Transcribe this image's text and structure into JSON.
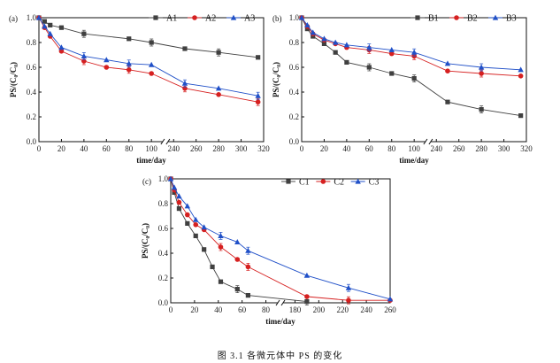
{
  "caption": "图 3.1  各微元体中 PS 的变化",
  "chart_data": [
    {
      "type": "line",
      "panel_label": "(a)",
      "xlabel": "time/day",
      "ylabel": "PS/(C₀/C₀)",
      "ylim": [
        0,
        1.0
      ],
      "yticks": [
        "0.0",
        "0.2",
        "0.4",
        "0.6",
        "0.8",
        "1.0"
      ],
      "xbreak": [
        110,
        235
      ],
      "xticks": [
        "0",
        "20",
        "40",
        "60",
        "80",
        "100",
        "240",
        "260",
        "280",
        "300",
        "320"
      ],
      "series": [
        {
          "name": "A1",
          "color": "#404040",
          "marker": "square",
          "x": [
            0,
            5,
            10,
            20,
            40,
            80,
            100,
            250,
            280,
            315
          ],
          "y": [
            1.0,
            0.97,
            0.94,
            0.92,
            0.87,
            0.83,
            0.8,
            0.75,
            0.72,
            0.68
          ]
        },
        {
          "name": "A2",
          "color": "#d62020",
          "marker": "circle",
          "x": [
            0,
            5,
            10,
            20,
            40,
            60,
            80,
            100,
            250,
            280,
            315
          ],
          "y": [
            1.0,
            0.92,
            0.85,
            0.73,
            0.65,
            0.6,
            0.58,
            0.55,
            0.43,
            0.38,
            0.32
          ]
        },
        {
          "name": "A3",
          "color": "#2050c8",
          "marker": "triangle",
          "x": [
            0,
            5,
            10,
            20,
            40,
            60,
            80,
            100,
            250,
            280,
            315
          ],
          "y": [
            1.0,
            0.93,
            0.87,
            0.76,
            0.69,
            0.66,
            0.63,
            0.62,
            0.47,
            0.43,
            0.37
          ]
        }
      ]
    },
    {
      "type": "line",
      "panel_label": "(b)",
      "xlabel": "time/day",
      "ylabel": "PS/(C₀/C₀)",
      "ylim": [
        0,
        1.0
      ],
      "yticks": [
        "0.0",
        "0.2",
        "0.4",
        "0.6",
        "0.8",
        "1.0"
      ],
      "xbreak": [
        110,
        235
      ],
      "xticks": [
        "0",
        "20",
        "40",
        "60",
        "80",
        "100",
        "240",
        "260",
        "280",
        "300",
        "320"
      ],
      "series": [
        {
          "name": "B1",
          "color": "#404040",
          "marker": "square",
          "x": [
            0,
            5,
            10,
            20,
            30,
            40,
            60,
            80,
            100,
            250,
            280,
            315
          ],
          "y": [
            1.0,
            0.91,
            0.85,
            0.79,
            0.72,
            0.64,
            0.6,
            0.55,
            0.51,
            0.32,
            0.26,
            0.21
          ]
        },
        {
          "name": "B2",
          "color": "#d62020",
          "marker": "circle",
          "x": [
            0,
            5,
            10,
            20,
            30,
            40,
            60,
            80,
            100,
            250,
            280,
            315
          ],
          "y": [
            1.0,
            0.93,
            0.87,
            0.82,
            0.79,
            0.76,
            0.74,
            0.71,
            0.69,
            0.57,
            0.55,
            0.53
          ]
        },
        {
          "name": "B3",
          "color": "#2050c8",
          "marker": "triangle",
          "x": [
            0,
            5,
            10,
            20,
            30,
            40,
            60,
            80,
            100,
            250,
            280,
            315
          ],
          "y": [
            1.0,
            0.94,
            0.88,
            0.83,
            0.8,
            0.78,
            0.76,
            0.74,
            0.72,
            0.63,
            0.6,
            0.58
          ]
        }
      ]
    },
    {
      "type": "line",
      "panel_label": "(c)",
      "xlabel": "time/day",
      "ylabel": "PS/(C₀/C₀)",
      "ylim": [
        0,
        1.0
      ],
      "yticks": [
        "0.0",
        "0.2",
        "0.4",
        "0.6",
        "0.8",
        "1.0"
      ],
      "xbreak": [
        90,
        170
      ],
      "xticks": [
        "0",
        "20",
        "40",
        "60",
        "80",
        "180",
        "200",
        "220",
        "240",
        "260"
      ],
      "series": [
        {
          "name": "C1",
          "color": "#404040",
          "marker": "square",
          "x": [
            0,
            3,
            7,
            14,
            21,
            28,
            35,
            42,
            56,
            65,
            190
          ],
          "y": [
            1.0,
            0.89,
            0.76,
            0.64,
            0.54,
            0.43,
            0.29,
            0.17,
            0.11,
            0.06,
            0.01
          ]
        },
        {
          "name": "C2",
          "color": "#d62020",
          "marker": "circle",
          "x": [
            0,
            3,
            7,
            14,
            21,
            28,
            42,
            56,
            65,
            190,
            225,
            260
          ],
          "y": [
            1.0,
            0.91,
            0.81,
            0.71,
            0.63,
            0.59,
            0.45,
            0.35,
            0.29,
            0.05,
            0.02,
            0.02
          ]
        },
        {
          "name": "C3",
          "color": "#2050c8",
          "marker": "triangle",
          "x": [
            0,
            3,
            7,
            14,
            21,
            28,
            42,
            56,
            65,
            190,
            225,
            260
          ],
          "y": [
            1.0,
            0.93,
            0.86,
            0.78,
            0.67,
            0.61,
            0.54,
            0.49,
            0.42,
            0.22,
            0.12,
            0.03
          ]
        }
      ]
    }
  ]
}
